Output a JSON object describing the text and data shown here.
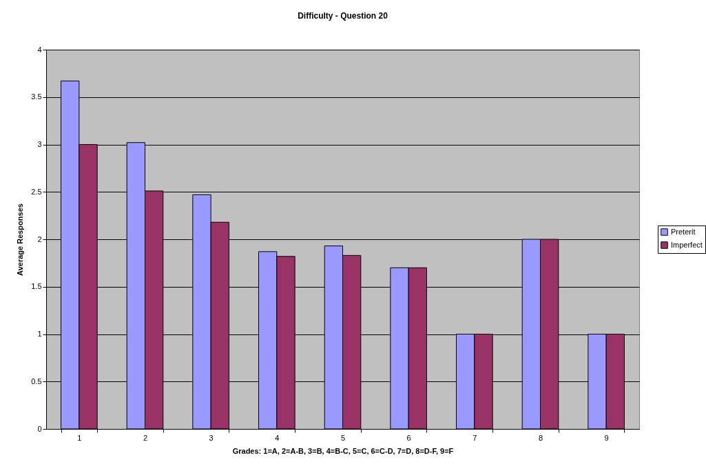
{
  "chart_data": {
    "type": "bar",
    "title": "Difficulty - Question 20",
    "xlabel": "Grades: 1=A, 2=A-B, 3=B, 4=B-C, 5=C, 6=C-D, 7=D, 8=D-F, 9=F",
    "ylabel": "Average Responses",
    "categories": [
      "1",
      "2",
      "3",
      "4",
      "5",
      "6",
      "7",
      "8",
      "9"
    ],
    "series": [
      {
        "name": "Preterit",
        "color": "#9999ff",
        "values": [
          3.67,
          3.02,
          2.47,
          1.87,
          1.93,
          1.7,
          1,
          2,
          1
        ]
      },
      {
        "name": "Imperfect",
        "color": "#993366",
        "values": [
          3.0,
          2.51,
          2.18,
          1.82,
          1.83,
          1.7,
          1,
          2,
          1
        ]
      }
    ],
    "ylim": [
      0,
      4
    ],
    "yticks": [
      0,
      0.5,
      1,
      1.5,
      2,
      2.5,
      3,
      3.5,
      4
    ],
    "grid": "y",
    "legend": "right"
  }
}
